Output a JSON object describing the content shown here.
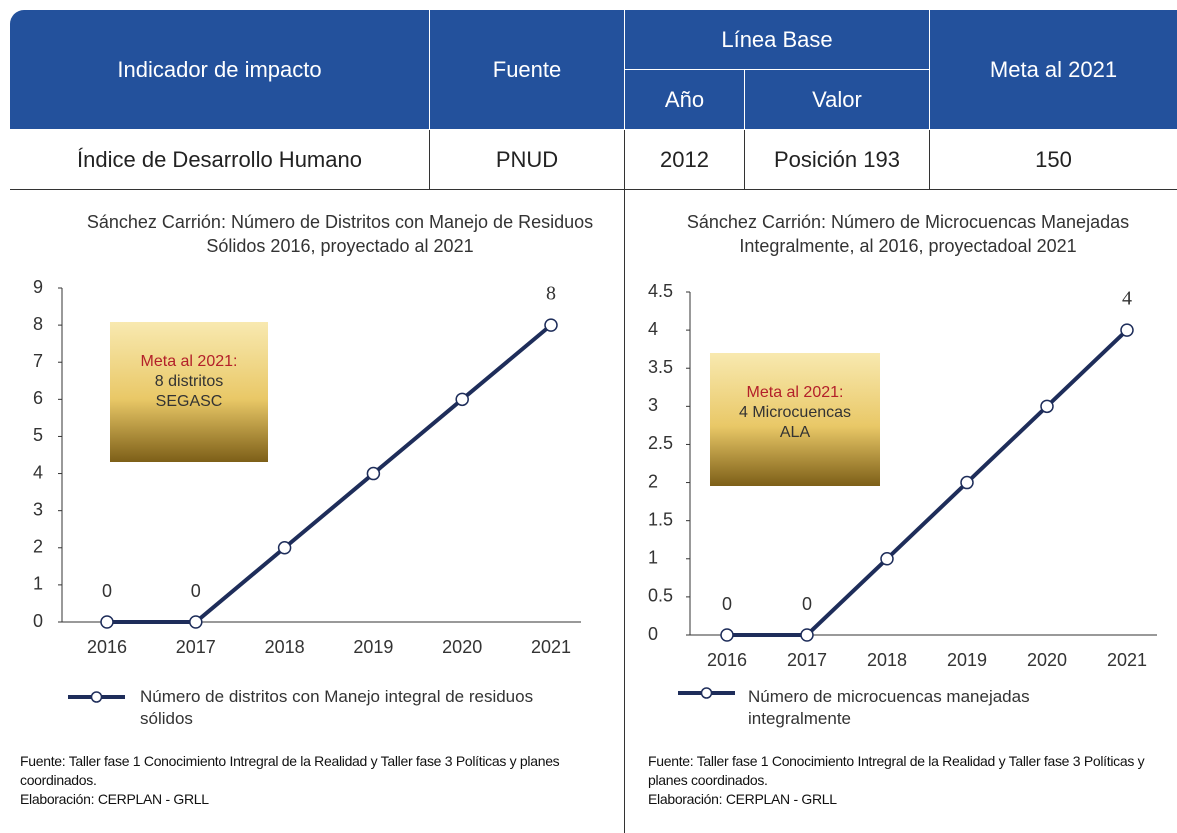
{
  "table": {
    "headers": [
      "Indicador de impacto",
      "Fuente",
      "Línea Base",
      "Meta al 2021"
    ],
    "subheaders": [
      "Año",
      "Valor"
    ],
    "rows": [
      [
        "Índice de Desarrollo Humano",
        "PNUD",
        "2012",
        "Posición 193",
        "150"
      ]
    ]
  },
  "chart_data": [
    {
      "type": "line",
      "title": "Sánchez Carrión: Número de Distritos con Manejo de Residuos Sólidos 2016, proyectado al 2021",
      "categories": [
        "2016",
        "2017",
        "2018",
        "2019",
        "2020",
        "2021"
      ],
      "series": [
        {
          "name": "Número de distritos con Manejo integral de residuos sólidos",
          "color": "#1e2d5a",
          "values": [
            0,
            0,
            2,
            4,
            6,
            8
          ],
          "value_labels": [
            "0",
            "0",
            null,
            null,
            null,
            "8"
          ]
        }
      ],
      "ylim": [
        0,
        9
      ],
      "yticks": [
        0,
        1,
        2,
        3,
        4,
        5,
        6,
        7,
        8,
        9
      ],
      "annotation": [
        "Meta al 2021:",
        "8 distritos",
        "SEGASC"
      ],
      "notes": [
        "Fuente: Taller fase 1 Conocimiento Intregral de la Realidad y Taller fase 3 Políticas y planes coordinados.",
        "Elaboración: CERPLAN - GRLL"
      ]
    },
    {
      "type": "line",
      "title": "Sánchez Carrión: Número de Microcuencas Manejadas Integralmente, al 2016, proyectadoal 2021",
      "categories": [
        "2016",
        "2017",
        "2018",
        "2019",
        "2020",
        "2021"
      ],
      "series": [
        {
          "name": "Número de microcuencas manejadas integralmente",
          "color": "#1e2d5a",
          "values": [
            0,
            0,
            1,
            2,
            3,
            4
          ],
          "value_labels": [
            "0",
            "0",
            null,
            null,
            null,
            "4"
          ]
        }
      ],
      "ylim": [
        0,
        4.5
      ],
      "yticks": [
        0,
        0.5,
        1,
        1.5,
        2,
        2.5,
        3,
        3.5,
        4,
        4.5
      ],
      "annotation": [
        "Meta al 2021:",
        "4 Microcuencas",
        "ALA"
      ],
      "notes": [
        "Fuente: Taller fase 1 Conocimiento Intregral de la Realidad y Taller fase 3 Políticas y planes coordinados.",
        "Elaboración: CERPLAN - GRLL"
      ]
    }
  ]
}
